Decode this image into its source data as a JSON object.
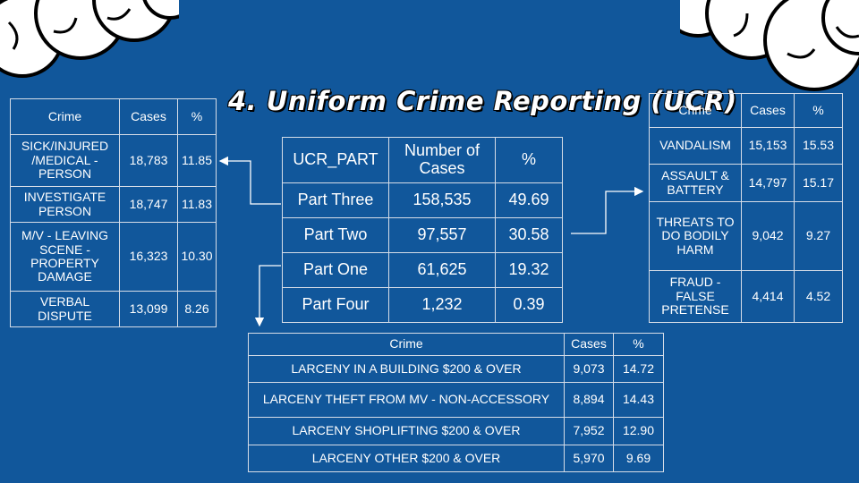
{
  "slide": {
    "title": "4. Uniform Crime Reporting (UCR)",
    "background_color": "#11579b"
  },
  "main_table": {
    "headers": [
      "UCR_PART",
      "Number of Cases",
      "%"
    ],
    "rows": [
      {
        "part": "Part Three",
        "cases": "158,535",
        "pct": "49.69"
      },
      {
        "part": "Part Two",
        "cases": "97,557",
        "pct": "30.58"
      },
      {
        "part": "Part One",
        "cases": "61,625",
        "pct": "19.32"
      },
      {
        "part": "Part Four",
        "cases": "1,232",
        "pct": "0.39"
      }
    ]
  },
  "part_three_table": {
    "headers": [
      "Crime",
      "Cases",
      "%"
    ],
    "rows": [
      {
        "crime": "SICK/INJURED /MEDICAL - PERSON",
        "cases": "18,783",
        "pct": "11.85"
      },
      {
        "crime": "INVESTIGATE PERSON",
        "cases": "18,747",
        "pct": "11.83"
      },
      {
        "crime": "M/V - LEAVING SCENE - PROPERTY DAMAGE",
        "cases": "16,323",
        "pct": "10.30"
      },
      {
        "crime": "VERBAL DISPUTE",
        "cases": "13,099",
        "pct": "8.26"
      }
    ]
  },
  "part_two_table": {
    "headers": [
      "Crime",
      "Cases",
      "%"
    ],
    "rows": [
      {
        "crime": "VANDALISM",
        "cases": "15,153",
        "pct": "15.53"
      },
      {
        "crime": "ASSAULT & BATTERY",
        "cases": "14,797",
        "pct": "15.17"
      },
      {
        "crime": "THREATS TO DO BODILY HARM",
        "cases": "9,042",
        "pct": "9.27"
      },
      {
        "crime": "FRAUD - FALSE PRETENSE",
        "cases": "4,414",
        "pct": "4.52"
      }
    ]
  },
  "part_one_table": {
    "headers": [
      "Crime",
      "Cases",
      "%"
    ],
    "rows": [
      {
        "crime": "LARCENY IN A BUILDING $200 & OVER",
        "cases": "9,073",
        "pct": "14.72"
      },
      {
        "crime": "LARCENY THEFT FROM MV - NON-ACCESSORY",
        "cases": "8,894",
        "pct": "14.43"
      },
      {
        "crime": "LARCENY SHOPLIFTING $200 & OVER",
        "cases": "7,952",
        "pct": "12.90"
      },
      {
        "crime": "LARCENY OTHER $200 & OVER",
        "cases": "5,970",
        "pct": "9.69"
      }
    ]
  }
}
